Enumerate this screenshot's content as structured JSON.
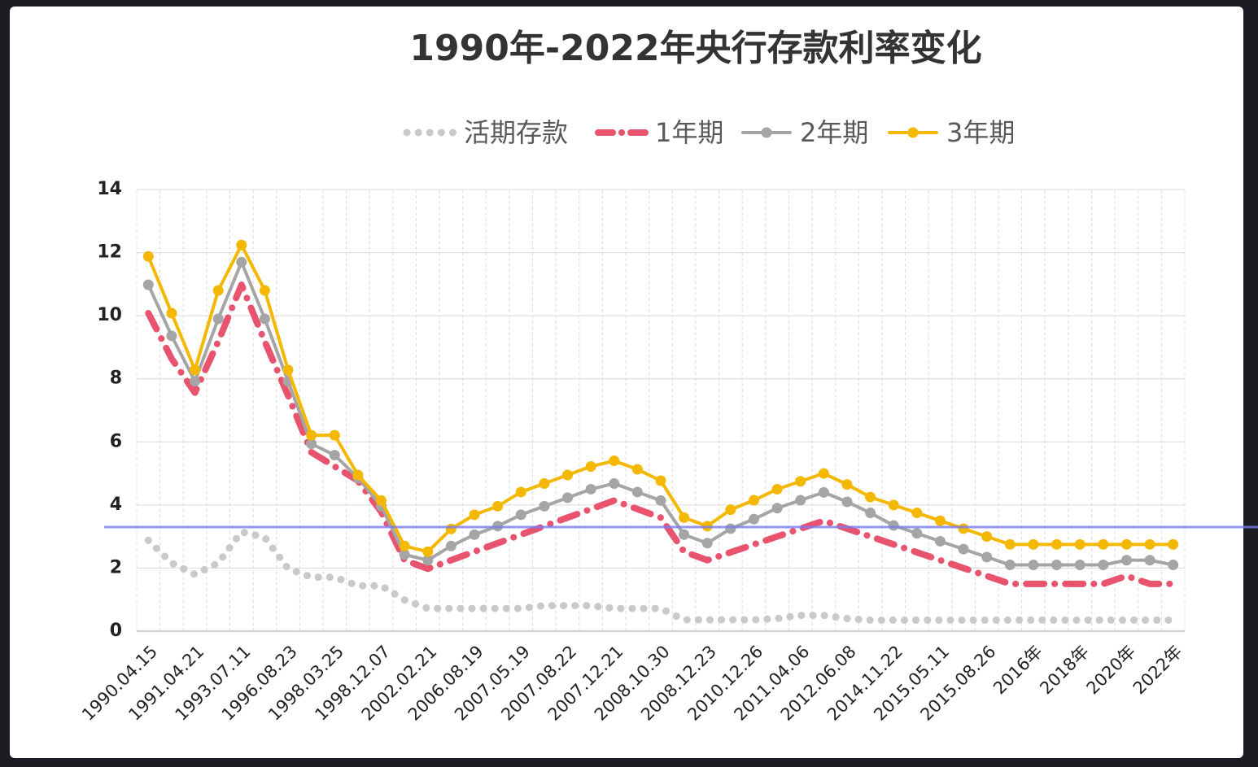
{
  "chart_data": {
    "type": "line",
    "title": "1990年-2022年央行存款利率变化",
    "categories": [
      "1990.04.15",
      null,
      "1991.04.21",
      null,
      "1993.07.11",
      null,
      "1996.08.23",
      null,
      "1998.03.25",
      null,
      "1998.12.07",
      null,
      "2002.02.21",
      null,
      "2006.08.19",
      null,
      "2007.05.19",
      null,
      "2007.08.22",
      null,
      "2007.12.21",
      null,
      "2008.10.30",
      null,
      "2008.12.23",
      null,
      "2010.12.26",
      null,
      "2011.04.06",
      null,
      "2012.06.08",
      null,
      "2014.11.22",
      null,
      "2015.05.11",
      null,
      "2015.08.26",
      null,
      "2016年",
      null,
      "2018年",
      null,
      "2020年",
      null,
      "2022年"
    ],
    "series": [
      {
        "name": "活期存款",
        "color": "#c9c9c9",
        "line_style": "dotted",
        "values": [
          2.88,
          2.16,
          1.8,
          2.16,
          3.15,
          2.97,
          1.98,
          1.71,
          1.71,
          1.44,
          1.44,
          0.99,
          0.72,
          0.72,
          0.72,
          0.72,
          0.72,
          0.81,
          0.81,
          0.81,
          0.72,
          0.72,
          0.72,
          0.36,
          0.36,
          0.36,
          0.36,
          0.4,
          0.5,
          0.5,
          0.4,
          0.35,
          0.35,
          0.35,
          0.35,
          0.35,
          0.35,
          0.35,
          0.35,
          0.35,
          0.35,
          0.35,
          0.35,
          0.35,
          0.35
        ]
      },
      {
        "name": "1年期",
        "color": "#e8546e",
        "line_style": "dashdot",
        "values": [
          10.08,
          8.64,
          7.56,
          9.18,
          10.98,
          9.18,
          7.47,
          5.67,
          5.22,
          4.77,
          3.78,
          2.25,
          1.98,
          2.25,
          2.52,
          2.79,
          3.06,
          3.33,
          3.6,
          3.87,
          4.14,
          3.87,
          3.6,
          2.52,
          2.25,
          2.5,
          2.75,
          3.0,
          3.25,
          3.5,
          3.25,
          3.0,
          2.75,
          2.5,
          2.25,
          2.0,
          1.75,
          1.5,
          1.5,
          1.5,
          1.5,
          1.5,
          1.75,
          1.5,
          1.5
        ]
      },
      {
        "name": "2年期",
        "color": "#a5a5a5",
        "line_style": "solid",
        "values": [
          10.98,
          9.36,
          7.92,
          9.9,
          11.7,
          9.9,
          7.92,
          5.94,
          5.58,
          4.86,
          3.96,
          2.43,
          2.25,
          2.7,
          3.06,
          3.33,
          3.69,
          3.96,
          4.23,
          4.5,
          4.68,
          4.41,
          4.14,
          3.06,
          2.79,
          3.25,
          3.55,
          3.9,
          4.15,
          4.4,
          4.1,
          3.75,
          3.35,
          3.1,
          2.85,
          2.6,
          2.35,
          2.1,
          2.1,
          2.1,
          2.1,
          2.1,
          2.25,
          2.25,
          2.1
        ]
      },
      {
        "name": "3年期",
        "color": "#f5b800",
        "line_style": "solid",
        "values": [
          11.88,
          10.08,
          8.28,
          10.8,
          12.24,
          10.8,
          8.28,
          6.21,
          6.21,
          4.95,
          4.14,
          2.7,
          2.52,
          3.24,
          3.69,
          3.96,
          4.41,
          4.68,
          4.95,
          5.22,
          5.4,
          5.13,
          4.77,
          3.6,
          3.33,
          3.85,
          4.15,
          4.5,
          4.75,
          5.0,
          4.65,
          4.25,
          4.0,
          3.75,
          3.5,
          3.25,
          3.0,
          2.75,
          2.75,
          2.75,
          2.75,
          2.75,
          2.75,
          2.75,
          2.75
        ]
      }
    ],
    "ylim": [
      0,
      14
    ],
    "yticks": [
      0,
      2,
      4,
      6,
      8,
      10,
      12,
      14
    ],
    "grid": true,
    "legend": "top"
  }
}
